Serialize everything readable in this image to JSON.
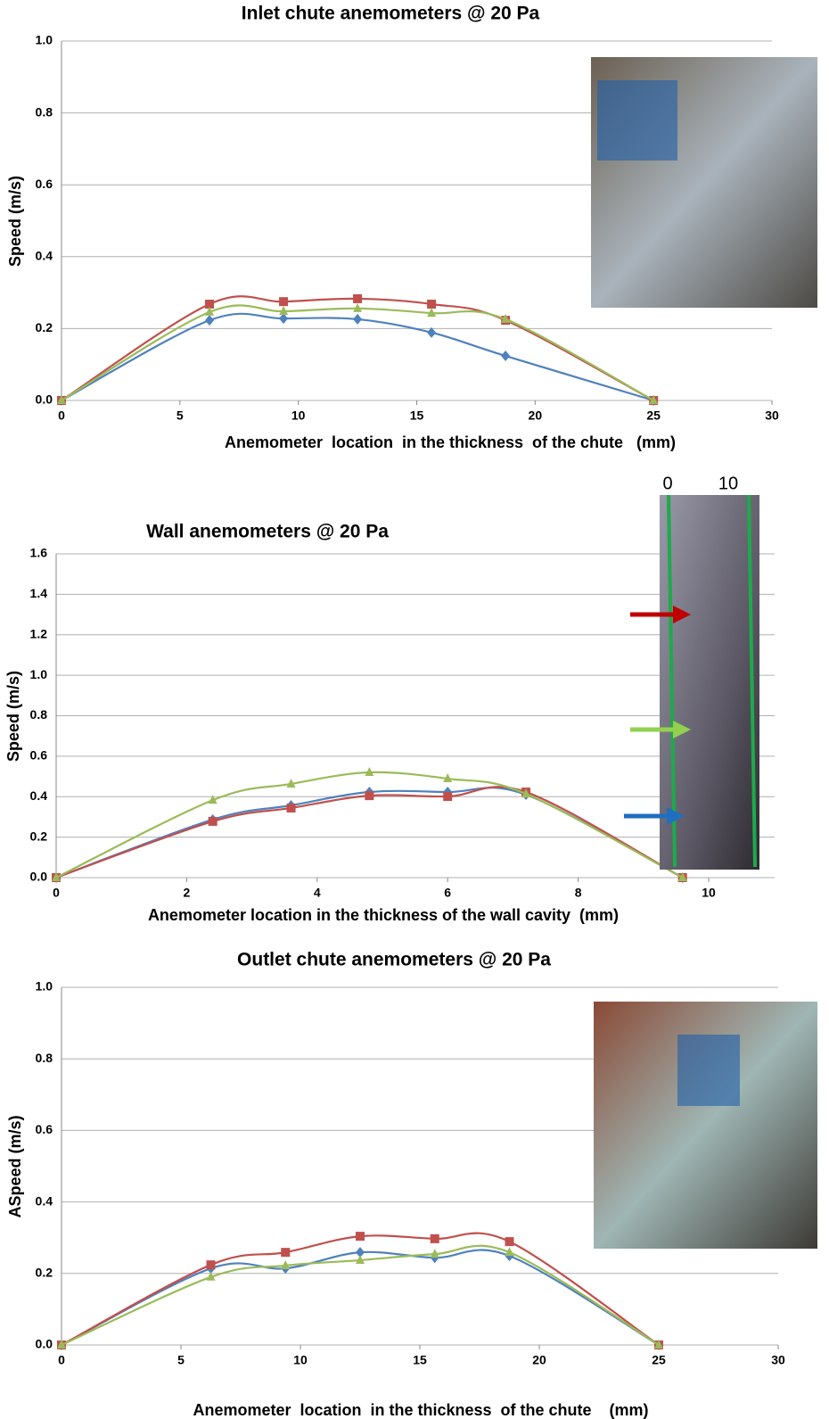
{
  "chart_data": [
    {
      "type": "line",
      "title": "Inlet chute anemometers @ 20 Pa",
      "x_label": "Anemometer  location  in the thickness  of the chute   (mm)",
      "y_label": "Speed (m/s)",
      "x": [
        0,
        6.25,
        9.375,
        12.5,
        15.625,
        18.75,
        25
      ],
      "series": [
        {
          "color": "#4f81bd",
          "marker": "diamond",
          "values": [
            0,
            0.223,
            0.228,
            0.226,
            0.189,
            0.124,
            0
          ]
        },
        {
          "color": "#c0504d",
          "marker": "square",
          "values": [
            0,
            0.268,
            0.275,
            0.283,
            0.268,
            0.223,
            0
          ]
        },
        {
          "color": "#9bbb59",
          "marker": "triangle",
          "values": [
            0,
            0.246,
            0.248,
            0.256,
            0.243,
            0.226,
            0
          ]
        }
      ],
      "xlim": [
        0,
        30
      ],
      "xticks": [
        0,
        5,
        10,
        15,
        20,
        25,
        30
      ],
      "ylim": [
        0,
        1
      ],
      "yticks": [
        {
          "value": 0,
          "label": "0.0"
        },
        {
          "value": 0.2,
          "label": "0.2"
        },
        {
          "value": 0.4,
          "label": "0.4"
        },
        {
          "value": 0.6,
          "label": "0.6"
        },
        {
          "value": 0.8,
          "label": "0.8"
        },
        {
          "value": 1,
          "label": "1.0"
        }
      ],
      "grid": true,
      "smooth": true
    },
    {
      "type": "line",
      "title": "Wall anemometers @ 20 Pa",
      "x_label": "Anemometer location in the thickness of the wall cavity  (mm)",
      "y_label": "Speed (m/s)",
      "image_labels": [
        "0",
        "10"
      ],
      "x": [
        0,
        2.4,
        3.6,
        4.8,
        6.0,
        7.2,
        9.6
      ],
      "series": [
        {
          "color": "#4f81bd",
          "marker": "diamond",
          "values": [
            0,
            0.287,
            0.357,
            0.423,
            0.423,
            0.41,
            0
          ]
        },
        {
          "color": "#c0504d",
          "marker": "square",
          "values": [
            0,
            0.278,
            0.344,
            0.405,
            0.401,
            0.423,
            0
          ]
        },
        {
          "color": "#9bbb59",
          "marker": "triangle",
          "values": [
            0,
            0.383,
            0.463,
            0.52,
            0.489,
            0.414,
            0
          ]
        }
      ],
      "xlim": [
        0,
        10
      ],
      "xticks": [
        0,
        2,
        4,
        6,
        8,
        10
      ],
      "ylim": [
        0,
        1.6
      ],
      "yticks": [
        {
          "value": 0,
          "label": "0.0"
        },
        {
          "value": 0.2,
          "label": "0.2"
        },
        {
          "value": 0.4,
          "label": "0.4"
        },
        {
          "value": 0.6,
          "label": "0.6"
        },
        {
          "value": 0.8,
          "label": "0.8"
        },
        {
          "value": 1,
          "label": "1.0"
        },
        {
          "value": 1.2,
          "label": "1.2"
        },
        {
          "value": 1.4,
          "label": "1.4"
        },
        {
          "value": 1.6,
          "label": "1.6"
        }
      ],
      "grid": true,
      "smooth": true
    },
    {
      "type": "line",
      "title": "Outlet chute anemometers @ 20 Pa",
      "x_label": "Anemometer  location  in the thickness  of the chute    (mm)",
      "y_label": "ASpeed (m/s)",
      "x": [
        0,
        6.25,
        9.375,
        12.5,
        15.625,
        18.75,
        25
      ],
      "series": [
        {
          "color": "#4f81bd",
          "marker": "diamond",
          "values": [
            0,
            0.214,
            0.214,
            0.259,
            0.244,
            0.249,
            0
          ]
        },
        {
          "color": "#c0504d",
          "marker": "square",
          "values": [
            0,
            0.224,
            0.259,
            0.304,
            0.297,
            0.289,
            0
          ]
        },
        {
          "color": "#9bbb59",
          "marker": "triangle",
          "values": [
            0,
            0.19,
            0.222,
            0.237,
            0.254,
            0.259,
            0
          ]
        }
      ],
      "xlim": [
        0,
        30
      ],
      "xticks": [
        0,
        5,
        10,
        15,
        20,
        25,
        30
      ],
      "ylim": [
        0,
        1
      ],
      "yticks": [
        {
          "value": 0,
          "label": "0.0"
        },
        {
          "value": 0.2,
          "label": "0.2"
        },
        {
          "value": 0.4,
          "label": "0.4"
        },
        {
          "value": 0.6,
          "label": "0.6"
        },
        {
          "value": 0.8,
          "label": "0.8"
        },
        {
          "value": 1,
          "label": "1.0"
        }
      ],
      "grid": true,
      "smooth": true
    }
  ]
}
